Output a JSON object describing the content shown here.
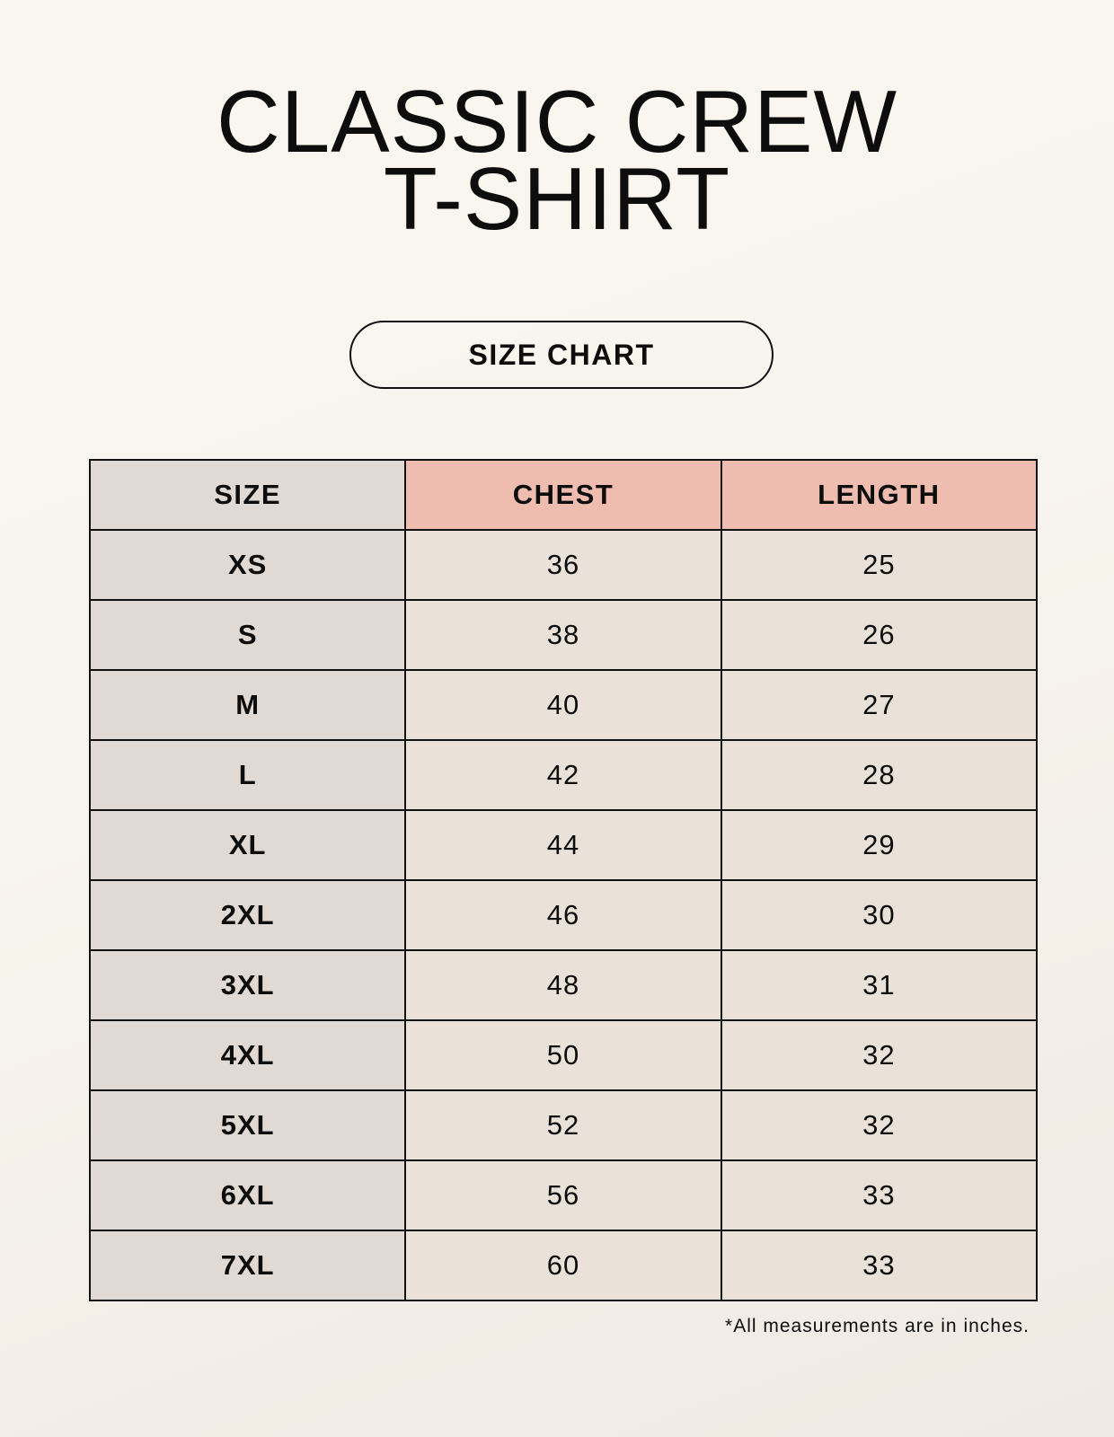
{
  "title": {
    "line1": "CLASSIC CREW",
    "line2": "T-SHIRT"
  },
  "badge": "SIZE CHART",
  "colors": {
    "header_size_bg": "#e1d9d3",
    "header_measure_bg": "#eebdb0",
    "value_bg": "#eae2d8"
  },
  "table": {
    "headers": [
      "SIZE",
      "CHEST",
      "LENGTH"
    ],
    "rows": [
      [
        "XS",
        "36",
        "25"
      ],
      [
        "S",
        "38",
        "26"
      ],
      [
        "M",
        "40",
        "27"
      ],
      [
        "L",
        "42",
        "28"
      ],
      [
        "XL",
        "44",
        "29"
      ],
      [
        "2XL",
        "46",
        "30"
      ],
      [
        "3XL",
        "48",
        "31"
      ],
      [
        "4XL",
        "50",
        "32"
      ],
      [
        "5XL",
        "52",
        "32"
      ],
      [
        "6XL",
        "56",
        "33"
      ],
      [
        "7XL",
        "60",
        "33"
      ]
    ]
  },
  "footnote": "*All measurements are in inches."
}
